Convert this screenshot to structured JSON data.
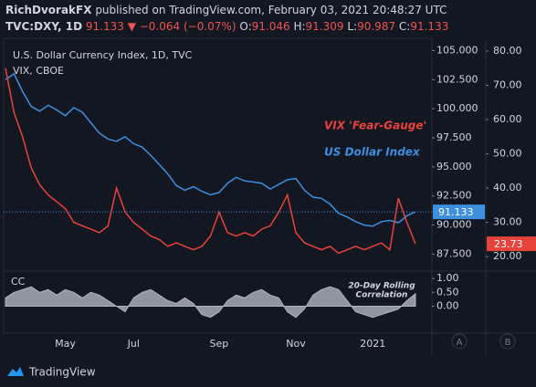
{
  "header": {
    "author": "RichDvorakFX",
    "published": "published on TradingView.com, February 03, 2021 20:48:27 UTC",
    "symbol": "TVC:DXY, 1D",
    "last": "91.133",
    "change": "▼ −0.064 (−0.07%)",
    "ohlc": [
      {
        "label": "O:",
        "value": "91.046"
      },
      {
        "label": "H:",
        "value": "91.309"
      },
      {
        "label": "L:",
        "value": "90.987"
      },
      {
        "label": "C:",
        "value": "91.133"
      }
    ]
  },
  "footer": {
    "brand": "TradingView",
    "axis_buttons": [
      "A",
      "B"
    ]
  },
  "chart_data": [
    {
      "type": "line",
      "title": "U.S. Dollar Currency Index, 1D, TVC",
      "subtitle": "VIX, CBOE",
      "categories": [
        null,
        null,
        null,
        null,
        null,
        null,
        null,
        "May",
        null,
        null,
        null,
        null,
        null,
        null,
        null,
        "Jul",
        null,
        null,
        null,
        null,
        null,
        null,
        null,
        null,
        null,
        "Sep",
        null,
        null,
        null,
        null,
        null,
        null,
        null,
        null,
        "Nov",
        null,
        null,
        null,
        null,
        null,
        null,
        null,
        null,
        "2021",
        null,
        null,
        null,
        null,
        null
      ],
      "series": [
        {
          "name": "US Dollar Index",
          "color": "#3d8fe0",
          "values": [
            102.5,
            103.0,
            101.5,
            100.2,
            99.8,
            100.3,
            99.9,
            99.4,
            100.1,
            99.7,
            98.8,
            97.9,
            97.4,
            97.2,
            97.6,
            97.0,
            96.7,
            96.0,
            95.2,
            94.4,
            93.4,
            93.0,
            93.3,
            92.9,
            92.6,
            92.8,
            93.6,
            94.1,
            93.8,
            93.7,
            93.6,
            93.1,
            93.5,
            93.9,
            94.0,
            93.0,
            92.4,
            92.3,
            91.8,
            91.0,
            90.7,
            90.3,
            90.0,
            89.9,
            90.3,
            90.4,
            90.2,
            90.8,
            91.133
          ]
        },
        {
          "name": "VIX 'Fear-Gauge'",
          "color": "#e8433b",
          "axis": "y2",
          "values": [
            75,
            62,
            55,
            46,
            41,
            38,
            36,
            34,
            30,
            29,
            28,
            27,
            29,
            40,
            33,
            30,
            28,
            26,
            25,
            23,
            24,
            23,
            22,
            23,
            26,
            33,
            27,
            26,
            27,
            26,
            28,
            29,
            33,
            38,
            27,
            24,
            23,
            22,
            23,
            21,
            22,
            23,
            22,
            23,
            24,
            22,
            37,
            30,
            23.73
          ]
        }
      ],
      "ylim": [
        86.2,
        105.9
      ],
      "yticks": [
        {
          "value": 87.5,
          "label": "87.500"
        },
        {
          "value": 90,
          "label": "90.000"
        },
        {
          "value": 92.5,
          "label": "92.500"
        },
        {
          "value": 95,
          "label": "95.000"
        },
        {
          "value": 97.5,
          "label": "97.500"
        },
        {
          "value": 100,
          "label": "100.000"
        },
        {
          "value": 102.5,
          "label": "102.500"
        },
        {
          "value": 105,
          "label": "105.000"
        }
      ],
      "y2lim": [
        16.3,
        83.2
      ],
      "y2ticks": [
        {
          "value": 20,
          "label": "20.00"
        },
        {
          "value": 30,
          "label": "30.00"
        },
        {
          "value": 40,
          "label": "40.00"
        },
        {
          "value": 50,
          "label": "50.00"
        },
        {
          "value": 60,
          "label": "60.00"
        },
        {
          "value": 70,
          "label": "70.00"
        },
        {
          "value": 80,
          "label": "80.00"
        }
      ],
      "grid": false
    },
    {
      "type": "area",
      "title": "CC",
      "annotation": [
        "20-Day Rolling",
        "Correlation"
      ],
      "color": "#b2b5be",
      "values": [
        0.3,
        0.5,
        0.6,
        0.7,
        0.5,
        0.6,
        0.4,
        0.6,
        0.5,
        0.3,
        0.5,
        0.4,
        0.2,
        0.0,
        -0.2,
        0.3,
        0.5,
        0.6,
        0.4,
        0.2,
        0.1,
        0.3,
        0.1,
        -0.3,
        -0.4,
        -0.2,
        0.2,
        0.4,
        0.3,
        0.5,
        0.6,
        0.4,
        0.3,
        -0.2,
        -0.4,
        -0.1,
        0.4,
        0.6,
        0.7,
        0.6,
        0.2,
        -0.2,
        -0.3,
        -0.4,
        -0.3,
        -0.2,
        -0.1,
        0.2,
        0.45
      ],
      "ylim": [
        -0.87,
        1.2
      ],
      "yticks": [
        {
          "value": 0,
          "label": "0.00"
        },
        {
          "value": 0.5,
          "label": "0.50"
        },
        {
          "value": 1,
          "label": "1.00"
        }
      ],
      "grid": false
    }
  ]
}
